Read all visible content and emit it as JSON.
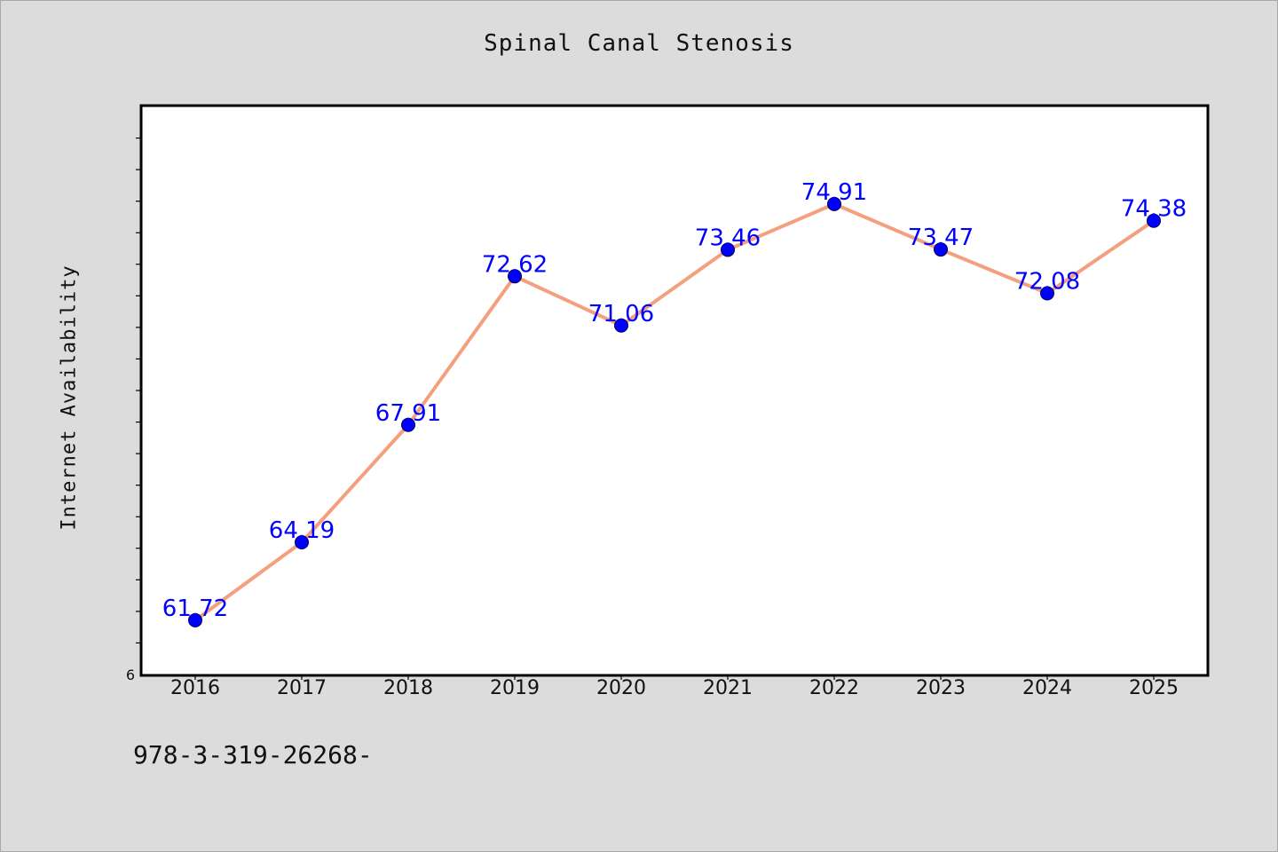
{
  "chart_data": {
    "type": "line",
    "title": "Spinal Canal Stenosis",
    "xlabel": "",
    "ylabel": "Internet Availability",
    "categories": [
      "2016",
      "2017",
      "2018",
      "2019",
      "2020",
      "2021",
      "2022",
      "2023",
      "2024",
      "2025"
    ],
    "series": [
      {
        "values": [
          61.72,
          64.19,
          67.91,
          72.62,
          71.06,
          73.46,
          74.91,
          73.47,
          72.08,
          74.38
        ],
        "line_color": "#f4a07e",
        "marker_color": "#0000ff"
      }
    ],
    "data_labels": [
      "61.72",
      "64.19",
      "67.91",
      "72.62",
      "71.06",
      "73.46",
      "74.91",
      "73.47",
      "72.08",
      "74.38"
    ],
    "ylim": [
      60,
      78
    ],
    "y_tick_labels": [
      "6"
    ],
    "grid": false,
    "legend": "none"
  },
  "footer_note": "978-3-319-26268-"
}
